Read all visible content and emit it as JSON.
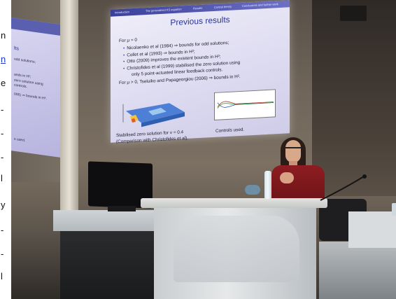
{
  "left_strip": {
    "chars": [
      "n",
      "n",
      "e",
      "-",
      "-",
      "-",
      "l",
      "y",
      "-",
      "-",
      "l"
    ],
    "link_char": "n"
  },
  "main_slide": {
    "nav": [
      "Introduction",
      "The generalised KS equation",
      "Results",
      "Control theory",
      "Conclusions and further work"
    ],
    "title": "Previous results",
    "bullets": [
      "For μ = 0",
      "Nicolaenko et al (1984) ⇒ bounds for odd solutions;",
      "Collet et al (1993) ⇒ bounds in H²;",
      "Otto (2009) improves the existent bounds in H²;",
      "Christofides et al (1999) stabilised the zero solution using",
      "only 5 point-actuated linear feedback controls.",
      "For μ > 0, Tseluiko and Papageorgiou (2006) ⇒ bounds in H²."
    ],
    "caption_left_1": "Stabilised zero solution for ν = 0.4",
    "caption_left_2": "(Comparison with Christofides et al).",
    "caption_right": "Controls used."
  },
  "left_slide": {
    "title": "lts",
    "lines": [
      "odd solutions;",
      "ands in H²;",
      "zero solution using",
      "controls.",
      "006) ⇒ bounds in H².",
      "s used."
    ]
  },
  "colors": {
    "slide_accent": "#2b3498",
    "sweater": "#8e1d22"
  }
}
